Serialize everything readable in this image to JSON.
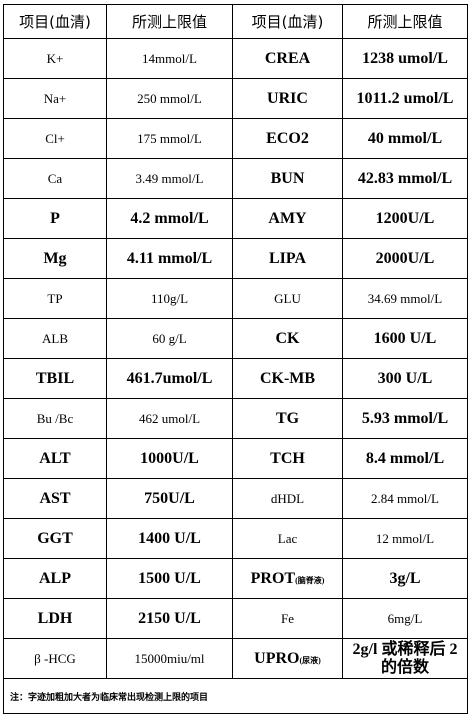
{
  "headers": [
    "项目(血清)",
    "所测上限值",
    "项目(血清)",
    "所测上限值"
  ],
  "rows": [
    {
      "item1": "K+",
      "value1": "14mmol/L",
      "bold1": false,
      "item2": "CREA",
      "value2": "1238 umol/L",
      "bold2": true
    },
    {
      "item1": "Na+",
      "value1": "250 mmol/L",
      "bold1": false,
      "item2": "URIC",
      "value2": "1011.2 umol/L",
      "bold2": true
    },
    {
      "item1": "Cl+",
      "value1": "175 mmol/L",
      "bold1": false,
      "item2": "ECO2",
      "value2": "40 mmol/L",
      "bold2": true
    },
    {
      "item1": "Ca",
      "value1": "3.49 mmol/L",
      "bold1": false,
      "item2": "BUN",
      "value2": "42.83 mmol/L",
      "bold2": true
    },
    {
      "item1": "P",
      "value1": "4.2 mmol/L",
      "bold1": true,
      "item2": "AMY",
      "value2": "1200U/L",
      "bold2": true
    },
    {
      "item1": "Mg",
      "value1": "4.11 mmol/L",
      "bold1": true,
      "item2": "LIPA",
      "value2": "2000U/L",
      "bold2": true
    },
    {
      "item1": "TP",
      "value1": "110g/L",
      "bold1": false,
      "item2": "GLU",
      "value2": "34.69 mmol/L",
      "bold2": false
    },
    {
      "item1": "ALB",
      "value1": "60 g/L",
      "bold1": false,
      "item2": "CK",
      "value2": "1600 U/L",
      "bold2": true
    },
    {
      "item1": "TBIL",
      "value1": "461.7umol/L",
      "bold1": true,
      "item2": "CK-MB",
      "value2": "300 U/L",
      "bold2": true
    },
    {
      "item1": "Bu /Bc",
      "value1": "462 umol/L",
      "bold1": false,
      "item2": "TG",
      "value2": "5.93 mmol/L",
      "bold2": true
    },
    {
      "item1": "ALT",
      "value1": "1000U/L",
      "bold1": true,
      "item2": "TCH",
      "value2": "8.4 mmol/L",
      "bold2": true
    },
    {
      "item1": "AST",
      "value1": "750U/L",
      "bold1": true,
      "item2": "dHDL",
      "value2": "2.84 mmol/L",
      "bold2": false
    },
    {
      "item1": "GGT",
      "value1": "1400 U/L",
      "bold1": true,
      "item2": "Lac",
      "value2": "12 mmol/L",
      "bold2": false
    },
    {
      "item1": "ALP",
      "value1": "1500 U/L",
      "bold1": true,
      "item2": "PROT",
      "item2_small": "(脑脊液)",
      "value2": "3g/L",
      "bold2": true
    },
    {
      "item1": "LDH",
      "value1": "2150 U/L",
      "bold1": true,
      "item2": "Fe",
      "value2": "6mg/L",
      "bold2": false
    },
    {
      "item1": "β -HCG",
      "value1": "15000miu/ml",
      "bold1": false,
      "item2": "UPRO",
      "item2_small": "(尿液)",
      "value2": "2g/l 或稀释后 2 的倍数",
      "bold2": true
    }
  ],
  "note": "注：字迹加粗加大者为临床常出现检测上限的项目"
}
